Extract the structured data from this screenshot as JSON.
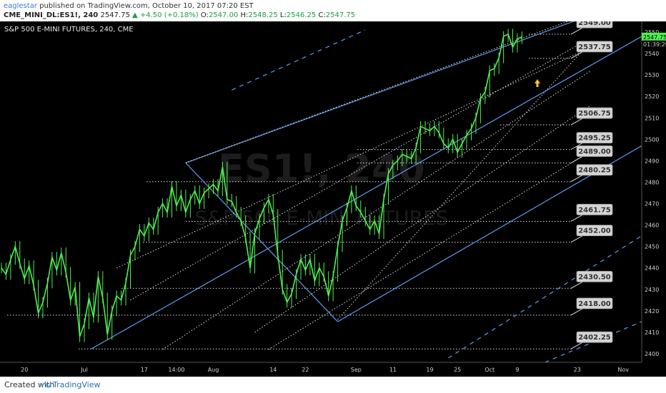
{
  "header": {
    "user": "eaglestar",
    "published_text": "published on TradingView.com, October 10, 2017 07:20 EST",
    "symbol": "CME_MINI_DL:ES1!, 240",
    "last": "2547.75",
    "change": "+4.50 (+0.18%)",
    "o_label": "O:",
    "o_val": "2547.00",
    "h_label": "H:",
    "h_val": "2548.25",
    "l_label": "L:",
    "l_val": "2546.25",
    "c_label": "C:",
    "c_val": "2547.75"
  },
  "footer": {
    "created": "Created with",
    "brand": "TradingView"
  },
  "chart_data": {
    "type": "line",
    "title": "S&P 500 E-MINI FUTURES, 240, CME",
    "watermark_symbol": "ES1!, 240",
    "watermark_name": "S&P 500 E-MINI FUTURES",
    "ylim": [
      2396,
      2555
    ],
    "y_ticks": [
      2400,
      2410,
      2420,
      2430,
      2440,
      2450,
      2460,
      2470,
      2480,
      2490,
      2500,
      2510,
      2520,
      2530,
      2540,
      2550
    ],
    "x_ticks": [
      {
        "label": "20",
        "i": 5
      },
      {
        "label": "Jul",
        "i": 18
      },
      {
        "label": "17",
        "i": 31
      },
      {
        "label": "14:00",
        "i": 38
      },
      {
        "label": "Aug",
        "i": 46
      },
      {
        "label": "14",
        "i": 59
      },
      {
        "label": "22",
        "i": 66
      },
      {
        "label": "Sep",
        "i": 77
      },
      {
        "label": "11",
        "i": 85
      },
      {
        "label": "19",
        "i": 93
      },
      {
        "label": "25",
        "i": 99
      },
      {
        "label": "Oct",
        "i": 106
      },
      {
        "label": "9",
        "i": 112
      },
      {
        "label": "23",
        "i": 125
      },
      {
        "label": "Nov",
        "i": 135
      }
    ],
    "x_count": 139,
    "price": [
      2440,
      2437,
      2444,
      2450,
      2442,
      2435,
      2441,
      2432,
      2419,
      2424,
      2433,
      2445,
      2439,
      2447,
      2438,
      2425,
      2431,
      2408,
      2414,
      2426,
      2417,
      2436,
      2426,
      2409,
      2420,
      2427,
      2425,
      2433,
      2446,
      2450,
      2458,
      2455,
      2461,
      2458,
      2466,
      2470,
      2466,
      2478,
      2469,
      2474,
      2466,
      2472,
      2476,
      2470,
      2475,
      2477,
      2479,
      2476,
      2487,
      2472,
      2471,
      2466,
      2462,
      2454,
      2440,
      2456,
      2463,
      2468,
      2472,
      2465,
      2446,
      2430,
      2424,
      2428,
      2437,
      2444,
      2439,
      2444,
      2434,
      2440,
      2436,
      2427,
      2436,
      2450,
      2462,
      2468,
      2476,
      2469,
      2466,
      2462,
      2458,
      2462,
      2456,
      2472,
      2484,
      2488,
      2490,
      2493,
      2492,
      2491,
      2496,
      2506,
      2505,
      2504,
      2506,
      2503,
      2498,
      2496,
      2500,
      2494,
      2498,
      2502,
      2505,
      2510,
      2519,
      2522,
      2532,
      2533,
      2538,
      2548,
      2549,
      2543,
      2547,
      2547.75
    ],
    "series_color": "#4ff04f",
    "markers": [
      {
        "label": "2549.00",
        "value": 2549.0
      },
      {
        "label": "2537.75",
        "value": 2537.75
      },
      {
        "label": "2506.75",
        "value": 2506.75
      },
      {
        "label": "2495.25",
        "value": 2495.25
      },
      {
        "label": "2489.00",
        "value": 2489.0
      },
      {
        "label": "2480.25",
        "value": 2480.25
      },
      {
        "label": "2461.75",
        "value": 2461.75
      },
      {
        "label": "2452.00",
        "value": 2452.0
      },
      {
        "label": "2430.50",
        "value": 2430.5
      },
      {
        "label": "2418.00",
        "value": 2418.0
      },
      {
        "label": "2402.25",
        "value": 2402.25
      }
    ],
    "price_labels": [
      "2547.75",
      "01:39:20"
    ],
    "channel_color": "#5b8fe0",
    "grid": false
  }
}
